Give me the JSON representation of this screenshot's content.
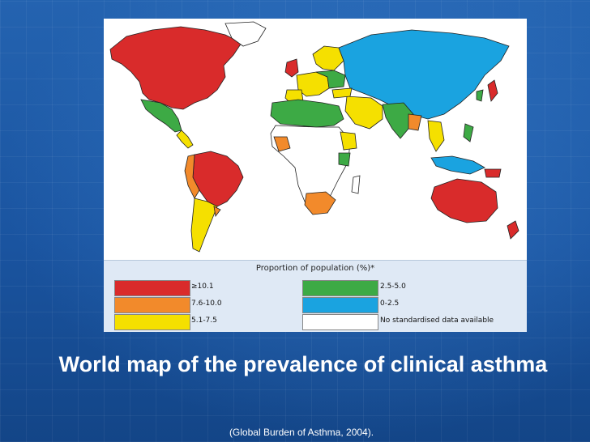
{
  "slide": {
    "title": "World map of the prevalence of clinical asthma",
    "source": "(Global Burden of Asthma, 2004)."
  },
  "legend": {
    "title": "Proportion of population (%)*",
    "items": [
      {
        "label": "≥10.1",
        "color": "#d92b2b"
      },
      {
        "label": "7.6-10.0",
        "color": "#f28a2b"
      },
      {
        "label": "5.1-7.5",
        "color": "#f5e000"
      },
      {
        "label": "2.5-5.0",
        "color": "#3daa45"
      },
      {
        "label": "0-2.5",
        "color": "#1aa3e0"
      },
      {
        "label": "No standardised data available",
        "color": "#ffffff"
      }
    ]
  },
  "colors": {
    "background": "#1a5aa6",
    "border": "#333333"
  }
}
